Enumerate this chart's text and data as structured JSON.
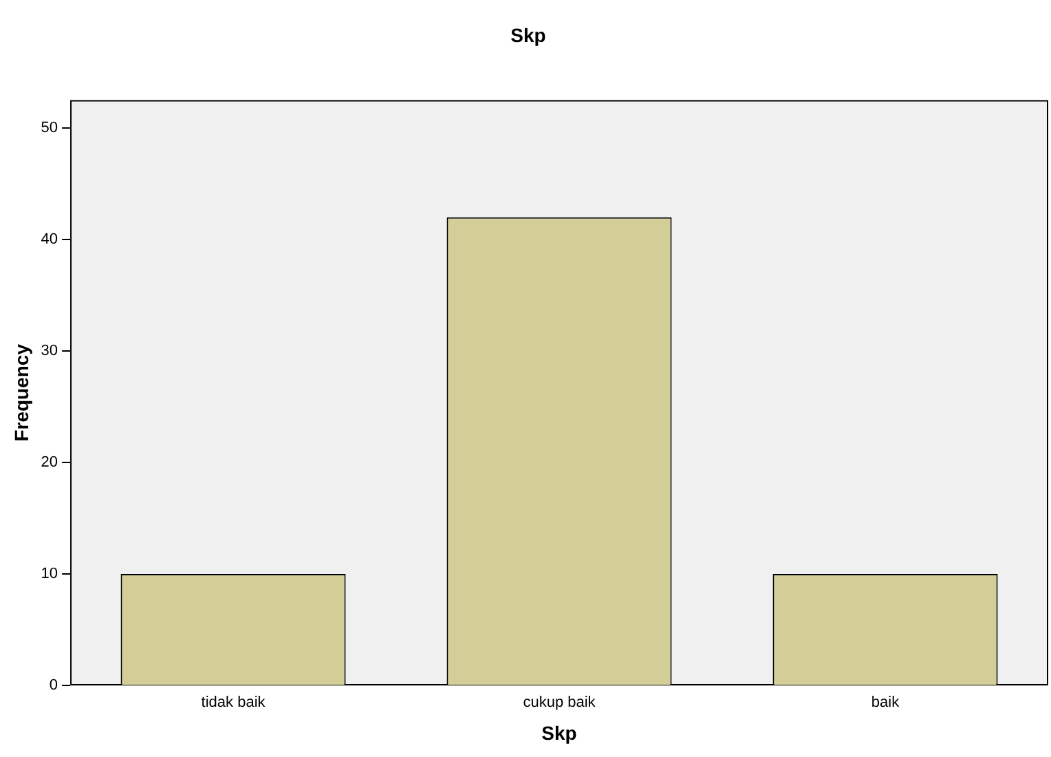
{
  "chart_data": {
    "type": "bar",
    "title": "Skp",
    "xlabel": "Skp",
    "ylabel": "Frequency",
    "categories": [
      "tidak baik",
      "cukup baik",
      "baik"
    ],
    "values": [
      10,
      42,
      10
    ],
    "color": "#d3ce97",
    "ylim": [
      0,
      52.5
    ],
    "yticks": [
      0,
      10,
      20,
      30,
      40,
      50
    ],
    "grid": false,
    "legend": false
  }
}
